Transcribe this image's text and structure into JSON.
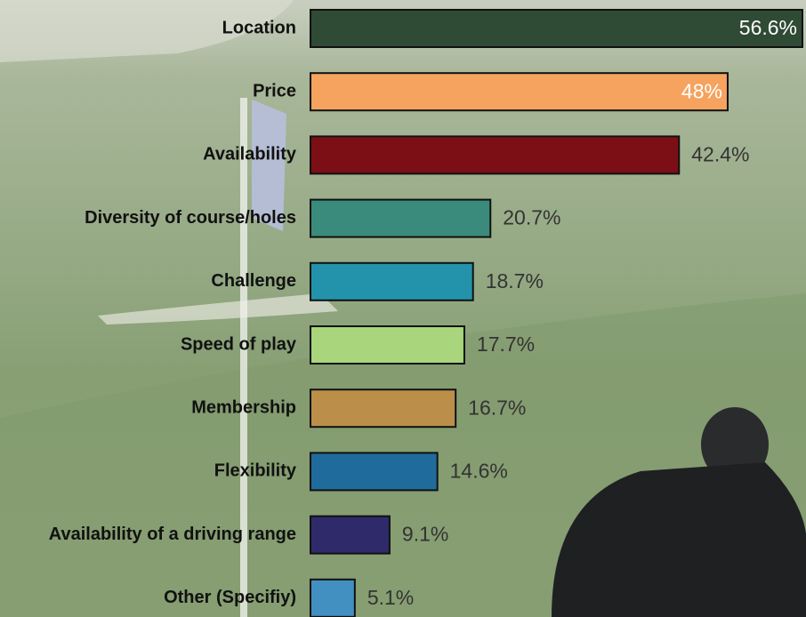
{
  "chart_data": {
    "type": "bar",
    "orientation": "horizontal",
    "categories": [
      "Location",
      "Price",
      "Availability",
      "Diversity of course/holes",
      "Challenge",
      "Speed of play",
      "Membership",
      "Flexibility",
      "Availability of a driving range",
      "Other (Specifiy)"
    ],
    "values": [
      56.6,
      48,
      42.4,
      20.7,
      18.7,
      17.7,
      16.7,
      14.6,
      9.1,
      5.1
    ],
    "value_labels": [
      "56.6%",
      "48%",
      "42.4%",
      "20.7%",
      "18.7%",
      "17.7%",
      "16.7%",
      "14.6%",
      "9.1%",
      "5.1%"
    ],
    "colors": [
      "#2f4a35",
      "#f5a35e",
      "#7c0f15",
      "#3a8b7c",
      "#2393ab",
      "#a9d67c",
      "#bb8f4a",
      "#1f6c9c",
      "#2f2b6b",
      "#4290c2"
    ]
  }
}
